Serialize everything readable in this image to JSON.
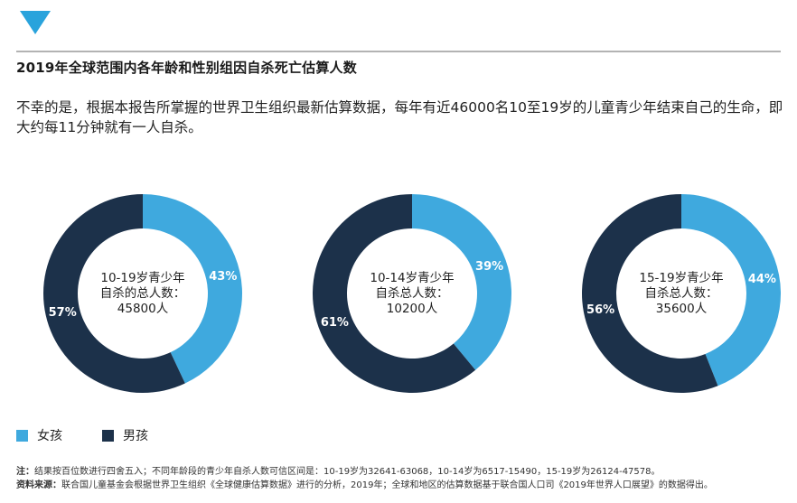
{
  "colors": {
    "girls": "#3fa9de",
    "boys": "#1c314a",
    "accent": "#29a3dc"
  },
  "header": {
    "title": "2019年全球范围内各年龄和性别组因自杀死亡估算人数",
    "intro": "不幸的是，根据本报告所掌握的世界卫生组织最新估算数据，每年有近46000名10至19岁的儿童青少年结束自己的生命，即大约每11分钟就有一人自杀。"
  },
  "chart_data": [
    {
      "type": "pie",
      "center_label": [
        "10-19岁青少年",
        "自杀的总人数：",
        "45800人"
      ],
      "categories": [
        "女孩",
        "男孩"
      ],
      "values": [
        43,
        57
      ],
      "value_labels": [
        "43%",
        "57%"
      ]
    },
    {
      "type": "pie",
      "center_label": [
        "10-14岁青少年",
        "自杀总人数：",
        "10200人"
      ],
      "categories": [
        "女孩",
        "男孩"
      ],
      "values": [
        39,
        61
      ],
      "value_labels": [
        "39%",
        "61%"
      ]
    },
    {
      "type": "pie",
      "center_label": [
        "15-19岁青少年",
        "自杀总人数：",
        "35600人"
      ],
      "categories": [
        "女孩",
        "男孩"
      ],
      "values": [
        44,
        56
      ],
      "value_labels": [
        "44%",
        "56%"
      ]
    }
  ],
  "legend": {
    "girls": "女孩",
    "boys": "男孩"
  },
  "notes": {
    "note_label": "注：",
    "note_text": "结果按百位数进行四舍五入；不同年龄段的青少年自杀人数可信区间是：10-19岁为32641-63068，10-14岁为6517-15490，15-19岁为26124-47578。",
    "source_label": "资料来源：",
    "source_text": "联合国儿童基金会根据世界卫生组织《全球健康估算数据》进行的分析，2019年；全球和地区的估算数据基于联合国人口司《2019年世界人口展望》的数据得出。"
  }
}
